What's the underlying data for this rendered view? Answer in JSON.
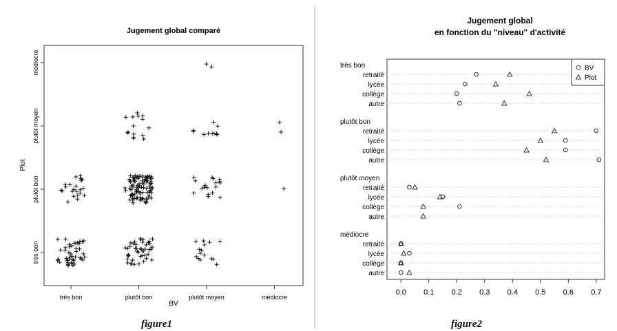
{
  "figure1": {
    "caption": "figure1",
    "chart_data": {
      "type": "scatter",
      "title": "Jugement global comparé",
      "xlabel": "BV",
      "ylabel": "Plot",
      "categories": [
        "très bon",
        "plutôt bon",
        "plutôt moyen",
        "médiocre"
      ],
      "y_categories": [
        "très bon",
        "plutôt bon",
        "plutôt moyen",
        "médiocre"
      ],
      "jitter": true,
      "marker": "+",
      "counts": [
        {
          "x": "très bon",
          "y": "très bon",
          "n": 45
        },
        {
          "x": "plutôt bon",
          "y": "très bon",
          "n": 45
        },
        {
          "x": "plutôt moyen",
          "y": "très bon",
          "n": 15
        },
        {
          "x": "très bon",
          "y": "plutôt bon",
          "n": 22
        },
        {
          "x": "plutôt bon",
          "y": "plutôt bon",
          "n": 100
        },
        {
          "x": "plutôt moyen",
          "y": "plutôt bon",
          "n": 18
        },
        {
          "x": "médiocre",
          "y": "plutôt bon",
          "n": 1
        },
        {
          "x": "plutôt bon",
          "y": "plutôt moyen",
          "n": 15
        },
        {
          "x": "plutôt moyen",
          "y": "plutôt moyen",
          "n": 10
        },
        {
          "x": "médiocre",
          "y": "plutôt moyen",
          "n": 2
        },
        {
          "x": "plutôt moyen",
          "y": "médiocre",
          "n": 2
        }
      ]
    }
  },
  "figure2": {
    "caption": "figure2",
    "chart_data": {
      "type": "scatter",
      "title": "Jugement global",
      "subtitle": "en fonction du \"niveau\" d'activité",
      "xlim": [
        -0.05,
        0.73
      ],
      "xticks": [
        0.0,
        0.1,
        0.2,
        0.3,
        0.4,
        0.5,
        0.6,
        0.7
      ],
      "xtick_labels": [
        "0.0",
        "0.1",
        "0.2",
        "0.3",
        "0.4",
        "0.5",
        "0.6",
        "0.7"
      ],
      "legend": {
        "position": "top-right",
        "entries": [
          {
            "name": "BV",
            "marker": "circle"
          },
          {
            "name": "Plot",
            "marker": "triangle"
          }
        ]
      },
      "groups": [
        {
          "name": "très bon",
          "rows": [
            {
              "label": "retraité",
              "BV": 0.27,
              "Plot": 0.39
            },
            {
              "label": "lycée",
              "BV": 0.23,
              "Plot": 0.34
            },
            {
              "label": "collège",
              "BV": 0.2,
              "Plot": 0.46
            },
            {
              "label": "autre",
              "BV": 0.21,
              "Plot": 0.37
            }
          ]
        },
        {
          "name": "plutôt bon",
          "rows": [
            {
              "label": "retraité",
              "BV": 0.7,
              "Plot": 0.55
            },
            {
              "label": "lycée",
              "BV": 0.59,
              "Plot": 0.5
            },
            {
              "label": "collège",
              "BV": 0.59,
              "Plot": 0.45
            },
            {
              "label": "autre",
              "BV": 0.71,
              "Plot": 0.52
            }
          ]
        },
        {
          "name": "plutôt moyen",
          "rows": [
            {
              "label": "retraité",
              "BV": 0.03,
              "Plot": 0.05
            },
            {
              "label": "lycée",
              "BV": 0.15,
              "Plot": 0.14
            },
            {
              "label": "collège",
              "BV": 0.21,
              "Plot": 0.08
            },
            {
              "label": "autre",
              "BV": null,
              "Plot": 0.08
            }
          ]
        },
        {
          "name": "médiocre",
          "rows": [
            {
              "label": "retraité",
              "BV": 0.0,
              "Plot": 0.0
            },
            {
              "label": "lycée",
              "BV": 0.03,
              "Plot": 0.01
            },
            {
              "label": "collège",
              "BV": 0.0,
              "Plot": 0.0
            },
            {
              "label": "autre",
              "BV": 0.0,
              "Plot": 0.03
            }
          ]
        }
      ]
    }
  }
}
